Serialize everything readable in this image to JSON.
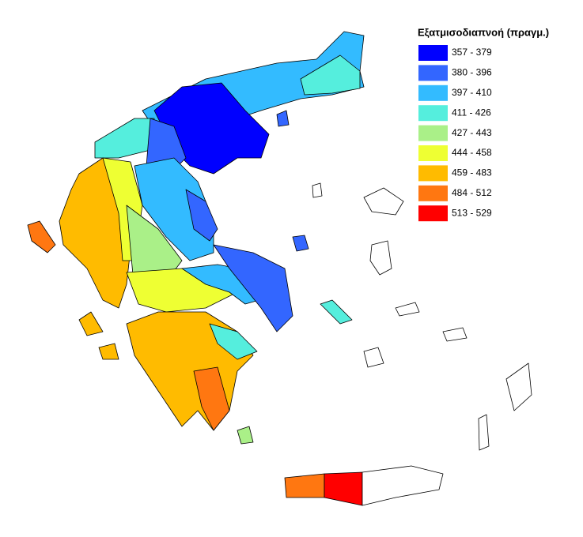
{
  "legend": {
    "title": "Εξατμισοδιαπνοή (πραγμ.)",
    "items": [
      {
        "label": "357 - 379",
        "color": "#0000ff"
      },
      {
        "label": "380 - 396",
        "color": "#3366ff"
      },
      {
        "label": "397 - 410",
        "color": "#33bbff"
      },
      {
        "label": "411 - 426",
        "color": "#55eedd"
      },
      {
        "label": "427 - 443",
        "color": "#aaf088"
      },
      {
        "label": "444 - 458",
        "color": "#eeff33"
      },
      {
        "label": "459 - 483",
        "color": "#ffbb00"
      },
      {
        "label": "484 - 512",
        "color": "#ff7711"
      },
      {
        "label": "513 - 529",
        "color": "#ff0000"
      }
    ]
  }
}
